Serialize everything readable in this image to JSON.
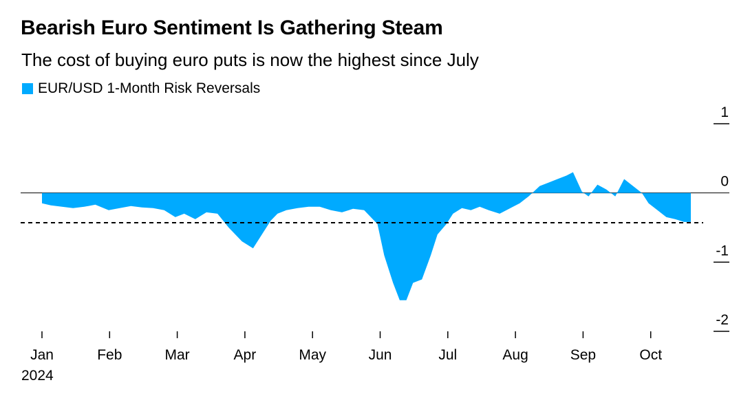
{
  "title": "Bearish Euro Sentiment Is Gathering Steam",
  "subtitle": "The cost of buying euro puts is now the highest since July",
  "legend": [
    {
      "label": "EUR/USD 1-Month Risk Reversals",
      "color": "#00aaff"
    }
  ],
  "chart_data": {
    "type": "area",
    "title": "Bearish Euro Sentiment Is Gathering Steam",
    "subtitle": "The cost of buying euro puts is now the highest since July",
    "series": [
      {
        "name": "EUR/USD 1-Month Risk Reversals",
        "color": "#00aaff"
      }
    ],
    "x": [
      "2024-01-01",
      "2024-01-05",
      "2024-01-10",
      "2024-01-15",
      "2024-01-20",
      "2024-01-25",
      "2024-01-31",
      "2024-02-05",
      "2024-02-10",
      "2024-02-15",
      "2024-02-20",
      "2024-02-25",
      "2024-03-01",
      "2024-03-05",
      "2024-03-10",
      "2024-03-15",
      "2024-03-20",
      "2024-03-25",
      "2024-03-31",
      "2024-04-05",
      "2024-04-10",
      "2024-04-13",
      "2024-04-16",
      "2024-04-20",
      "2024-04-25",
      "2024-04-30",
      "2024-05-05",
      "2024-05-10",
      "2024-05-15",
      "2024-05-20",
      "2024-05-25",
      "2024-05-31",
      "2024-06-03",
      "2024-06-07",
      "2024-06-10",
      "2024-06-13",
      "2024-06-16",
      "2024-06-20",
      "2024-06-24",
      "2024-06-27",
      "2024-07-01",
      "2024-07-04",
      "2024-07-08",
      "2024-07-12",
      "2024-07-16",
      "2024-07-20",
      "2024-07-25",
      "2024-07-31",
      "2024-08-03",
      "2024-08-07",
      "2024-08-12",
      "2024-08-16",
      "2024-08-20",
      "2024-08-24",
      "2024-08-27",
      "2024-08-31",
      "2024-09-03",
      "2024-09-07",
      "2024-09-11",
      "2024-09-15",
      "2024-09-19",
      "2024-09-23",
      "2024-09-27",
      "2024-09-30",
      "2024-10-04",
      "2024-10-08",
      "2024-10-12",
      "2024-10-16",
      "2024-10-19"
    ],
    "values": [
      -0.15,
      -0.18,
      -0.2,
      -0.22,
      -0.2,
      -0.17,
      -0.25,
      -0.22,
      -0.19,
      -0.21,
      -0.22,
      -0.25,
      -0.35,
      -0.3,
      -0.38,
      -0.28,
      -0.3,
      -0.5,
      -0.7,
      -0.8,
      -0.55,
      -0.4,
      -0.3,
      -0.25,
      -0.22,
      -0.2,
      -0.2,
      -0.25,
      -0.28,
      -0.23,
      -0.25,
      -0.45,
      -0.9,
      -1.3,
      -1.55,
      -1.55,
      -1.3,
      -1.25,
      -0.9,
      -0.6,
      -0.45,
      -0.3,
      -0.22,
      -0.25,
      -0.2,
      -0.25,
      -0.3,
      -0.2,
      -0.15,
      -0.05,
      0.1,
      0.15,
      0.2,
      0.25,
      0.3,
      0.02,
      -0.05,
      0.12,
      0.05,
      -0.05,
      0.2,
      0.1,
      0.0,
      -0.15,
      -0.25,
      -0.35,
      -0.38,
      -0.42,
      -0.42
    ],
    "reference_line": {
      "value": -0.43,
      "style": "dashed"
    },
    "x_ticks": [
      "Jan",
      "Feb",
      "Mar",
      "Apr",
      "May",
      "Jun",
      "Jul",
      "Aug",
      "Sep",
      "Oct"
    ],
    "x_year_label": "2024",
    "y_ticks": [
      "1",
      "0",
      "-1",
      "-2"
    ],
    "ylim": [
      -2.0,
      1.0
    ],
    "grid": false
  }
}
